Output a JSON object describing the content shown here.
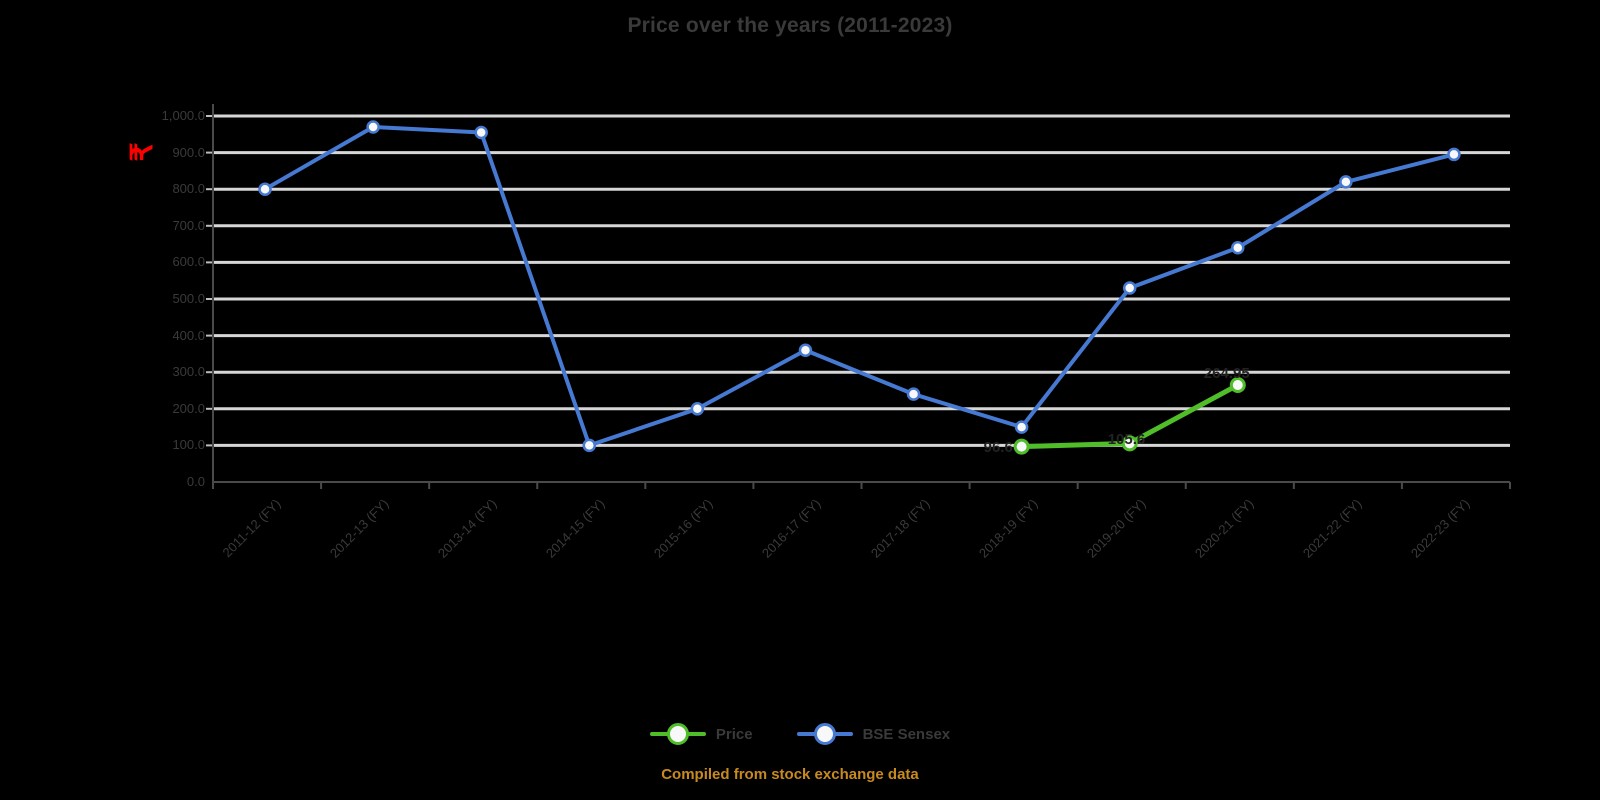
{
  "title": "Price over the years (2011-2023)",
  "y_axis": {
    "label": "₹",
    "tick_labels": [
      "0.0",
      "100.0",
      "200.0",
      "300.0",
      "400.0",
      "500.0",
      "600.0",
      "700.0",
      "800.0",
      "900.0",
      "1,000.0"
    ]
  },
  "x_axis": {
    "tick_labels": [
      "2011-12 (FY)",
      "2012-13 (FY)",
      "2013-14 (FY)",
      "2014-15 (FY)",
      "2015-16 (FY)",
      "2016-17 (FY)",
      "2017-18 (FY)",
      "2018-19 (FY)",
      "2019-20 (FY)",
      "2020-21 (FY)",
      "2021-22 (FY)",
      "2022-23 (FY)"
    ]
  },
  "legend": {
    "items": [
      {
        "label": "Price",
        "color": "#4fbe28"
      },
      {
        "label": "BSE Sensex",
        "color": "#4679d2"
      }
    ]
  },
  "caption": {
    "text": "Compiled from stock exchange data",
    "color": "#c8891f"
  },
  "chart_data": {
    "type": "line",
    "title": "Price over the years (2011-2023)",
    "categories": [
      "2011-12 (FY)",
      "2012-13 (FY)",
      "2013-14 (FY)",
      "2014-15 (FY)",
      "2015-16 (FY)",
      "2016-17 (FY)",
      "2017-18 (FY)",
      "2018-19 (FY)",
      "2019-20 (FY)",
      "2020-21 (FY)",
      "2021-22 (FY)",
      "2022-23 (FY)"
    ],
    "series": [
      {
        "name": "BSE Sensex",
        "color": "#4679d2",
        "values": [
          800,
          970,
          955,
          100,
          200,
          360,
          240,
          150,
          530,
          640,
          820,
          895
        ]
      },
      {
        "name": "Price",
        "color": "#4fbe28",
        "values": [
          null,
          null,
          null,
          null,
          null,
          null,
          null,
          96.6,
          105.6,
          264.95,
          null,
          null
        ],
        "data_labels": [
          {
            "index": 7,
            "text": "96.6"
          },
          {
            "index": 8,
            "text": "105.6"
          },
          {
            "index": 9,
            "text": "264.95"
          }
        ]
      }
    ],
    "ylabel": "₹",
    "xlabel": "",
    "ylim": [
      0,
      1000
    ],
    "y_tick_step": 100,
    "grid": "horizontal",
    "legend_position": "bottom"
  },
  "colors": {
    "background": "#000000",
    "grid": "#d6d6d6",
    "axis": "#4a4a4a",
    "axis_tick": "#bdbdbd",
    "text": "#3a3a3a",
    "data_label": "#222222",
    "y_axis_label": "#ff0000"
  }
}
